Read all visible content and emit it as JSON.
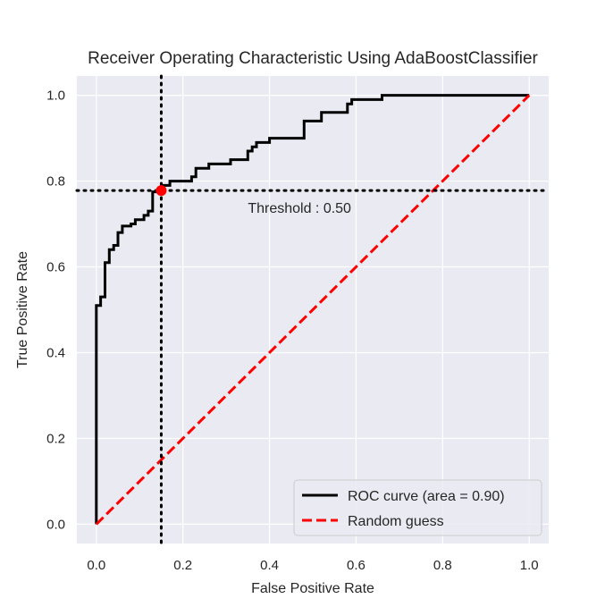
{
  "chart_data": {
    "type": "line",
    "title": "Receiver Operating Characteristic Using AdaBoostClassifier",
    "xlabel": "False Positive Rate",
    "ylabel": "True Positive Rate",
    "xlim": [
      -0.045,
      1.045
    ],
    "ylim": [
      -0.045,
      1.045
    ],
    "xticks": [
      "0.0",
      "0.2",
      "0.4",
      "0.6",
      "0.8",
      "1.0"
    ],
    "yticks": [
      "0.0",
      "0.2",
      "0.4",
      "0.6",
      "0.8",
      "1.0"
    ],
    "grid": true,
    "legend_position": "lower-right",
    "series": [
      {
        "name": "ROC curve (area = 0.90)",
        "color": "#000000",
        "style": "solid",
        "x": [
          0,
          0,
          0.01,
          0.01,
          0.02,
          0.02,
          0.03,
          0.03,
          0.04,
          0.04,
          0.05,
          0.05,
          0.06,
          0.06,
          0.08,
          0.08,
          0.09,
          0.09,
          0.11,
          0.11,
          0.12,
          0.12,
          0.13,
          0.13,
          0.15,
          0.15,
          0.17,
          0.17,
          0.22,
          0.22,
          0.23,
          0.23,
          0.26,
          0.26,
          0.31,
          0.31,
          0.35,
          0.35,
          0.36,
          0.36,
          0.37,
          0.37,
          0.4,
          0.4,
          0.48,
          0.48,
          0.52,
          0.52,
          0.58,
          0.58,
          0.59,
          0.59,
          0.66,
          0.66,
          1.0
        ],
        "y": [
          0,
          0.51,
          0.51,
          0.53,
          0.53,
          0.61,
          0.61,
          0.64,
          0.64,
          0.65,
          0.65,
          0.68,
          0.68,
          0.695,
          0.695,
          0.7,
          0.7,
          0.71,
          0.71,
          0.72,
          0.72,
          0.73,
          0.73,
          0.775,
          0.775,
          0.79,
          0.79,
          0.8,
          0.8,
          0.81,
          0.81,
          0.83,
          0.83,
          0.84,
          0.84,
          0.85,
          0.85,
          0.87,
          0.87,
          0.88,
          0.88,
          0.89,
          0.89,
          0.9,
          0.9,
          0.94,
          0.94,
          0.96,
          0.96,
          0.98,
          0.98,
          0.99,
          0.99,
          1.0,
          1.0
        ]
      },
      {
        "name": "Random guess",
        "color": "#ff0000",
        "style": "dashed",
        "x": [
          0,
          1
        ],
        "y": [
          0,
          1
        ]
      }
    ],
    "threshold": {
      "label": "Threshold : 0.50",
      "fpr": 0.15,
      "tpr": 0.778,
      "marker_color": "#ff0000"
    }
  }
}
